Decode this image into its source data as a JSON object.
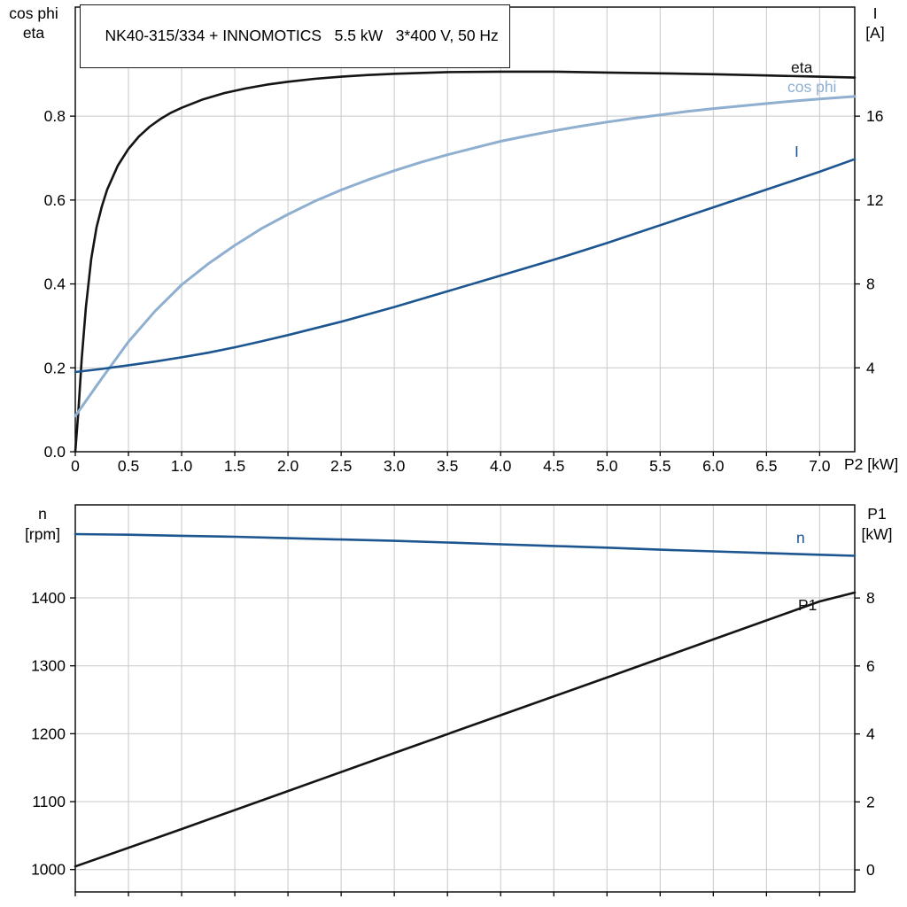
{
  "title_box": "NK40-315/334 + INNOMOTICS   5.5 kW   3*400 V, 50 Hz",
  "colors": {
    "black": "#141414",
    "light_blue": "#8fafd0",
    "dark_blue": "#1c5590",
    "grid": "#c9c9c9",
    "frame": "#000000"
  },
  "chart_data": [
    {
      "type": "line",
      "title": "Motor curves: eta, cos phi, I vs P2",
      "box": {
        "l": 85,
        "r": 965,
        "t": 8,
        "b": 510
      },
      "x": {
        "min": 0,
        "max": 7.33,
        "ticks": [
          0,
          0.5,
          1,
          1.5,
          2,
          2.5,
          3,
          3.5,
          4,
          4.5,
          5,
          5.5,
          6,
          6.5,
          7
        ],
        "tick_labels": [
          "0",
          "0.5",
          "1.0",
          "1.5",
          "2.0",
          "2.5",
          "3.0",
          "3.5",
          "4.0",
          "4.5",
          "5.0",
          "5.5",
          "6.0",
          "6.5",
          "7.0"
        ],
        "grid": [
          0.5,
          1,
          1.5,
          2,
          2.5,
          3,
          3.5,
          4,
          4.5,
          5,
          5.5,
          6,
          6.5,
          7
        ],
        "label": "P2 [kW]",
        "label_x": 953,
        "label_y": 530
      },
      "y_left": {
        "min": 0,
        "max": 1.06,
        "ticks": [
          0,
          0.2,
          0.4,
          0.6,
          0.8
        ],
        "tick_labels": [
          "0.0",
          "0.2",
          "0.4",
          "0.6",
          "0.8"
        ],
        "grid": [
          0.2,
          0.4,
          0.6,
          0.8
        ],
        "header": [
          "cos phi",
          "eta"
        ],
        "header_x": 38,
        "header_y": [
          21,
          43
        ]
      },
      "y_right": {
        "min": 0,
        "max": 21.2,
        "ticks": [
          4,
          8,
          12,
          16
        ],
        "tick_labels": [
          "4",
          "8",
          "12",
          "16"
        ],
        "header": [
          "I",
          "[A]"
        ],
        "header_x": 988,
        "header_y": [
          21,
          43
        ]
      },
      "series": [
        {
          "name": "eta",
          "axis": "left",
          "color": "black",
          "width": 2.6,
          "points": [
            [
              0,
              0
            ],
            [
              0.03,
              0.1
            ],
            [
              0.06,
              0.22
            ],
            [
              0.1,
              0.345
            ],
            [
              0.15,
              0.46
            ],
            [
              0.2,
              0.535
            ],
            [
              0.25,
              0.585
            ],
            [
              0.3,
              0.625
            ],
            [
              0.4,
              0.682
            ],
            [
              0.5,
              0.722
            ],
            [
              0.6,
              0.752
            ],
            [
              0.7,
              0.775
            ],
            [
              0.8,
              0.793
            ],
            [
              0.9,
              0.808
            ],
            [
              1.0,
              0.82
            ],
            [
              1.2,
              0.84
            ],
            [
              1.4,
              0.855
            ],
            [
              1.6,
              0.866
            ],
            [
              1.8,
              0.875
            ],
            [
              2.0,
              0.882
            ],
            [
              2.25,
              0.889
            ],
            [
              2.5,
              0.894
            ],
            [
              2.75,
              0.898
            ],
            [
              3.0,
              0.901
            ],
            [
              3.5,
              0.905
            ],
            [
              4.0,
              0.906
            ],
            [
              4.5,
              0.906
            ],
            [
              5.0,
              0.904
            ],
            [
              5.5,
              0.902
            ],
            [
              6.0,
              0.9
            ],
            [
              6.5,
              0.897
            ],
            [
              7.0,
              0.894
            ],
            [
              7.33,
              0.892
            ]
          ]
        },
        {
          "name": "cos phi",
          "axis": "left",
          "color": "light_blue",
          "width": 3,
          "points": [
            [
              0,
              0.085
            ],
            [
              0.25,
              0.175
            ],
            [
              0.5,
              0.262
            ],
            [
              0.75,
              0.335
            ],
            [
              1.0,
              0.398
            ],
            [
              1.25,
              0.448
            ],
            [
              1.5,
              0.492
            ],
            [
              1.75,
              0.532
            ],
            [
              2.0,
              0.566
            ],
            [
              2.25,
              0.597
            ],
            [
              2.5,
              0.624
            ],
            [
              2.75,
              0.648
            ],
            [
              3.0,
              0.67
            ],
            [
              3.25,
              0.69
            ],
            [
              3.5,
              0.708
            ],
            [
              3.75,
              0.724
            ],
            [
              4.0,
              0.74
            ],
            [
              4.25,
              0.753
            ],
            [
              4.5,
              0.765
            ],
            [
              4.75,
              0.776
            ],
            [
              5.0,
              0.786
            ],
            [
              5.25,
              0.795
            ],
            [
              5.5,
              0.803
            ],
            [
              5.75,
              0.811
            ],
            [
              6.0,
              0.818
            ],
            [
              6.25,
              0.824
            ],
            [
              6.5,
              0.83
            ],
            [
              6.75,
              0.836
            ],
            [
              7.0,
              0.841
            ],
            [
              7.33,
              0.847
            ]
          ]
        },
        {
          "name": "I",
          "axis": "right",
          "color": "dark_blue",
          "width": 2.6,
          "points": [
            [
              0,
              3.8
            ],
            [
              0.25,
              3.95
            ],
            [
              0.5,
              4.12
            ],
            [
              0.75,
              4.3
            ],
            [
              1.0,
              4.5
            ],
            [
              1.25,
              4.72
            ],
            [
              1.5,
              4.98
            ],
            [
              1.75,
              5.26
            ],
            [
              2.0,
              5.56
            ],
            [
              2.5,
              6.2
            ],
            [
              3.0,
              6.9
            ],
            [
              3.5,
              7.65
            ],
            [
              4.0,
              8.4
            ],
            [
              4.5,
              9.15
            ],
            [
              5.0,
              9.95
            ],
            [
              5.5,
              10.8
            ],
            [
              6.0,
              11.65
            ],
            [
              6.5,
              12.5
            ],
            [
              7.0,
              13.35
            ],
            [
              7.33,
              13.95
            ]
          ]
        }
      ],
      "series_labels": [
        {
          "text": "eta",
          "x": 893,
          "y": 82,
          "color": "black",
          "anchor": "start"
        },
        {
          "text": "cos phi",
          "x": 889,
          "y": 104,
          "color": "light_blue",
          "anchor": "start"
        },
        {
          "text": "I",
          "x": 897,
          "y": 177,
          "color": "dark_blue",
          "anchor": "start"
        }
      ]
    },
    {
      "type": "line",
      "title": "Motor curves: n and P1 vs P2",
      "box": {
        "l": 85,
        "r": 965,
        "t": 570,
        "b": 1007
      },
      "x": {
        "min": 0,
        "max": 7.33,
        "ticks": [
          0,
          0.5,
          1,
          1.5,
          2,
          2.5,
          3,
          3.5,
          4,
          4.5,
          5,
          5.5,
          6,
          6.5,
          7
        ],
        "tick_labels": [],
        "grid": [
          0.5,
          1,
          1.5,
          2,
          2.5,
          3,
          3.5,
          4,
          4.5,
          5,
          5.5,
          6,
          6.5,
          7
        ],
        "label": "",
        "label_x": 0,
        "label_y": 0
      },
      "y_left": {
        "min": 967,
        "max": 1537,
        "ticks": [
          1000,
          1100,
          1200,
          1300,
          1400
        ],
        "tick_labels": [
          "1000",
          "1100",
          "1200",
          "1300",
          "1400"
        ],
        "grid": [
          1000,
          1100,
          1200,
          1300,
          1400
        ],
        "header": [
          "n",
          "[rpm]"
        ],
        "header_x": 48,
        "header_y": [
          586,
          609
        ]
      },
      "y_right": {
        "min": -0.65,
        "max": 10.74,
        "ticks": [
          0,
          2,
          4,
          6,
          8
        ],
        "tick_labels": [
          "0",
          "2",
          "4",
          "6",
          "8"
        ],
        "header": [
          "P1",
          "[kW]"
        ],
        "header_x": 990,
        "header_y": [
          586,
          609
        ]
      },
      "series": [
        {
          "name": "n",
          "axis": "left",
          "color": "dark_blue",
          "width": 2.6,
          "points": [
            [
              0,
              1494
            ],
            [
              0.5,
              1493
            ],
            [
              1.0,
              1491.5
            ],
            [
              1.5,
              1490
            ],
            [
              2.0,
              1488
            ],
            [
              2.5,
              1486
            ],
            [
              3.0,
              1484
            ],
            [
              3.5,
              1481.5
            ],
            [
              4.0,
              1479
            ],
            [
              4.5,
              1476.5
            ],
            [
              5.0,
              1474
            ],
            [
              5.5,
              1471
            ],
            [
              6.0,
              1468.5
            ],
            [
              6.5,
              1466
            ],
            [
              7.0,
              1463.5
            ],
            [
              7.33,
              1462
            ]
          ]
        },
        {
          "name": "P1",
          "axis": "right",
          "color": "black",
          "width": 2.6,
          "points": [
            [
              0,
              0.1
            ],
            [
              1.0,
              1.2
            ],
            [
              2.0,
              2.32
            ],
            [
              3.0,
              3.44
            ],
            [
              4.0,
              4.55
            ],
            [
              5.0,
              5.66
            ],
            [
              6.0,
              6.78
            ],
            [
              7.0,
              7.9
            ],
            [
              7.33,
              8.16
            ]
          ]
        }
      ],
      "series_labels": [
        {
          "text": "n",
          "x": 899,
          "y": 613,
          "color": "dark_blue",
          "anchor": "start"
        },
        {
          "text": "P1",
          "x": 901,
          "y": 689,
          "color": "black",
          "anchor": "start"
        }
      ]
    }
  ]
}
